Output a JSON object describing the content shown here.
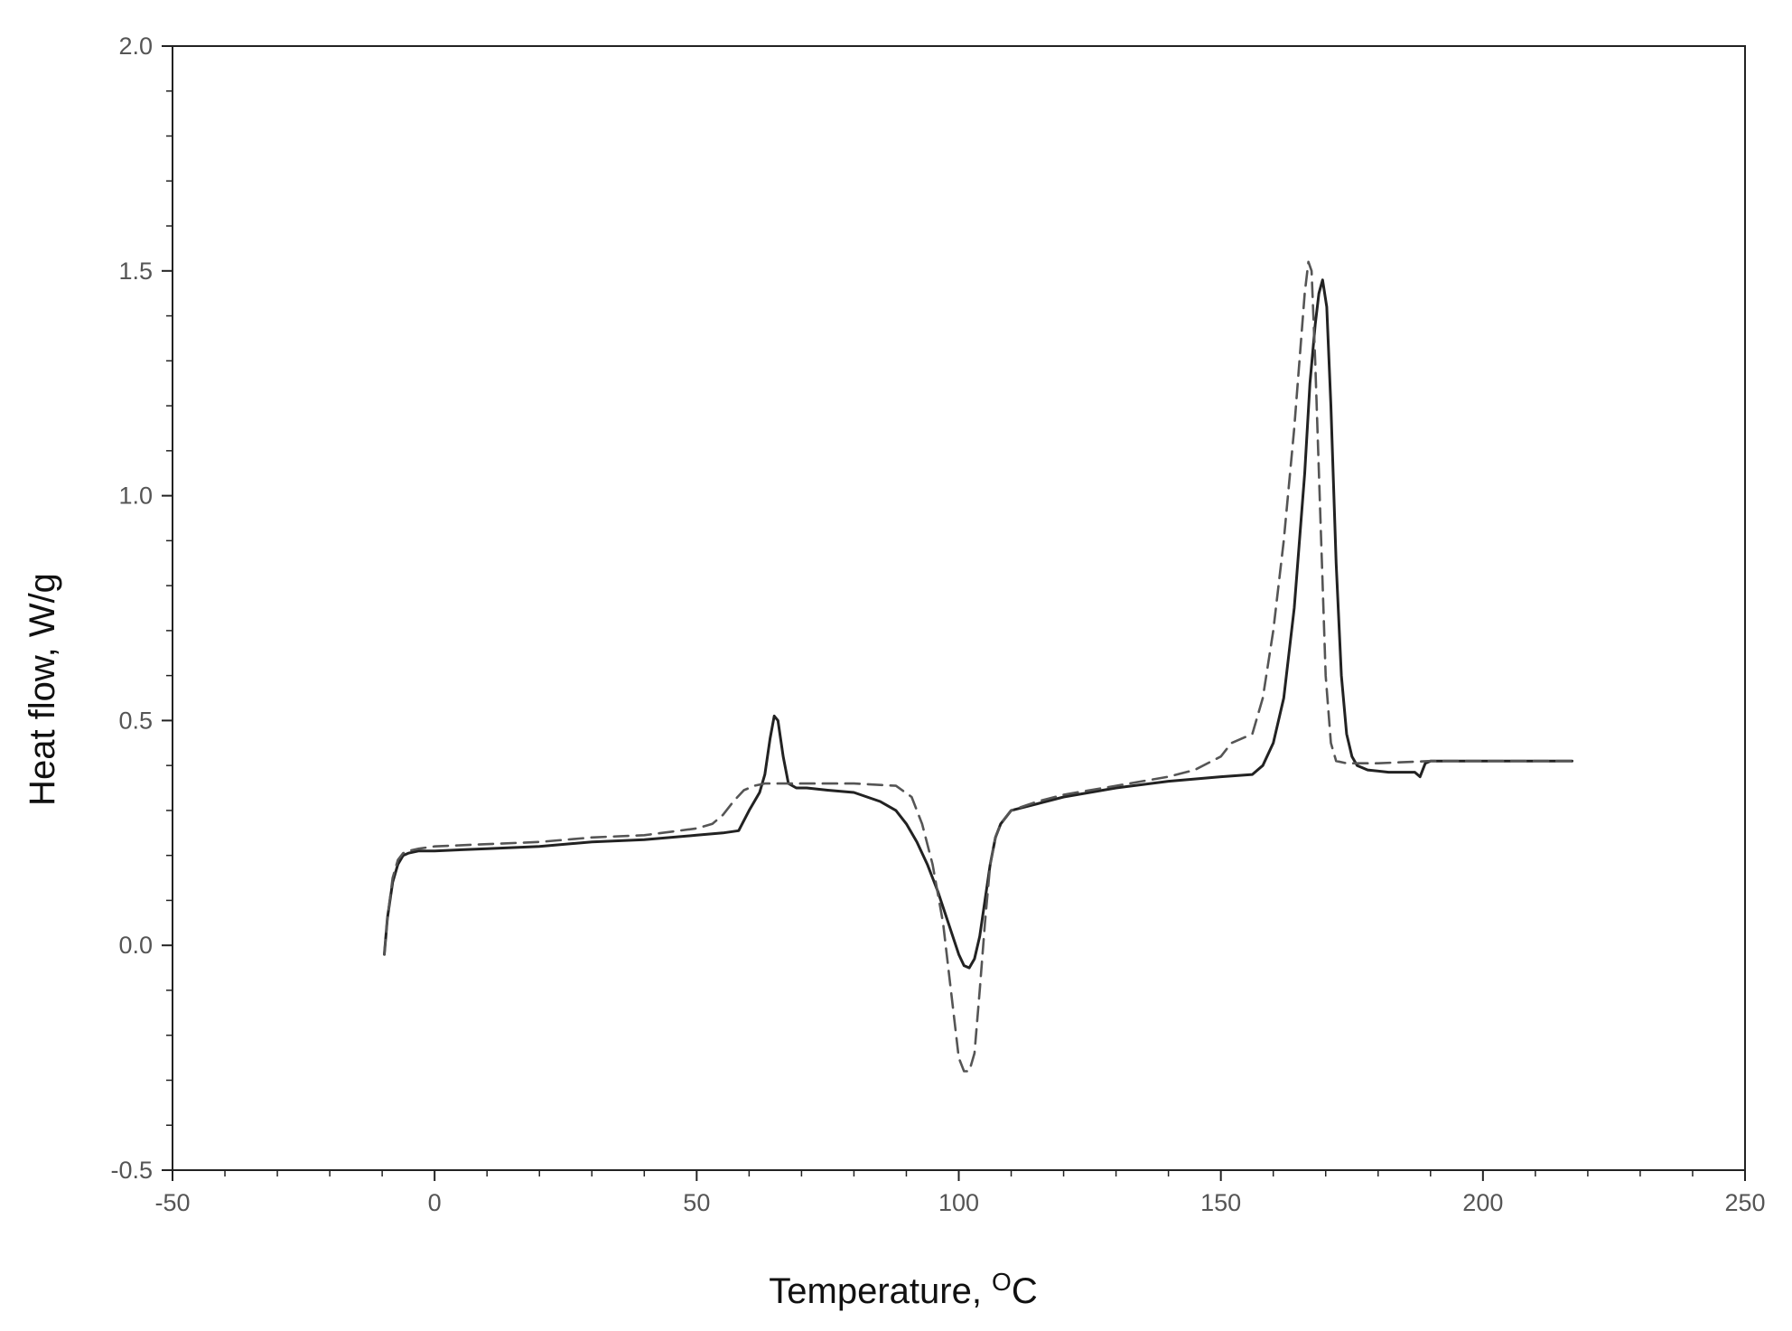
{
  "chart_data": {
    "type": "line",
    "title": "",
    "xlabel": "Temperature, ",
    "xlabel_unit_sup": "O",
    "xlabel_unit": "C",
    "ylabel": "Heat flow, W/g",
    "xlim": [
      -50,
      250
    ],
    "ylim": [
      -0.5,
      2.0
    ],
    "xticks": [
      -50,
      0,
      50,
      100,
      150,
      200,
      250
    ],
    "xtick_labels": [
      "-50",
      "0",
      "50",
      "100",
      "150",
      "200",
      "250"
    ],
    "yticks": [
      -0.5,
      0.0,
      0.5,
      1.0,
      1.5,
      2.0
    ],
    "ytick_labels": [
      "-0.5",
      "0.0",
      "0.5",
      "1.0",
      "1.5",
      "2.0"
    ],
    "grid": false,
    "legend": "none",
    "series": [
      {
        "style": "solid",
        "color": "#222222",
        "x": [
          -9.6,
          -9,
          -8,
          -7,
          -6,
          -5,
          -3,
          0,
          10,
          20,
          30,
          40,
          50,
          55,
          58,
          60,
          62,
          63,
          64,
          64.8,
          65.5,
          66.5,
          67.5,
          69,
          71,
          75,
          80,
          85,
          88,
          90,
          92,
          94,
          96,
          98,
          100,
          101,
          102,
          103,
          104,
          105,
          106,
          107,
          108,
          110,
          115,
          120,
          130,
          140,
          150,
          156,
          158,
          160,
          162,
          164,
          166,
          167,
          168,
          168.7,
          169.4,
          170.2,
          171,
          172,
          173,
          174,
          175,
          176,
          178,
          182,
          186,
          187,
          188,
          189,
          190,
          195,
          200,
          210,
          217
        ],
        "y": [
          -0.02,
          0.06,
          0.14,
          0.18,
          0.2,
          0.205,
          0.21,
          0.21,
          0.215,
          0.22,
          0.23,
          0.235,
          0.245,
          0.25,
          0.255,
          0.3,
          0.34,
          0.38,
          0.46,
          0.51,
          0.5,
          0.42,
          0.36,
          0.35,
          0.35,
          0.345,
          0.34,
          0.32,
          0.3,
          0.27,
          0.23,
          0.18,
          0.12,
          0.05,
          -0.02,
          -0.045,
          -0.05,
          -0.03,
          0.02,
          0.1,
          0.18,
          0.24,
          0.27,
          0.3,
          0.315,
          0.33,
          0.35,
          0.365,
          0.375,
          0.38,
          0.4,
          0.45,
          0.55,
          0.75,
          1.05,
          1.25,
          1.38,
          1.45,
          1.48,
          1.42,
          1.2,
          0.85,
          0.6,
          0.47,
          0.42,
          0.4,
          0.39,
          0.385,
          0.385,
          0.385,
          0.375,
          0.405,
          0.41,
          0.41,
          0.41,
          0.41,
          0.41
        ]
      },
      {
        "style": "dashed",
        "color": "#555555",
        "x": [
          -9.6,
          -9,
          -8,
          -7,
          -6,
          -5,
          -3,
          0,
          10,
          20,
          30,
          40,
          50,
          53,
          55,
          57,
          59,
          61,
          63,
          65,
          70,
          80,
          88,
          91,
          93,
          95,
          97,
          98,
          99,
          100,
          101,
          102,
          103,
          104,
          105,
          106,
          107,
          108,
          110,
          115,
          120,
          130,
          140,
          145,
          150,
          152,
          154,
          156,
          158,
          160,
          162,
          164,
          165,
          166,
          166.7,
          167.3,
          168,
          169,
          170,
          171,
          172,
          174,
          176,
          180,
          190,
          200,
          210,
          217
        ],
        "y": [
          -0.02,
          0.06,
          0.15,
          0.19,
          0.205,
          0.21,
          0.215,
          0.22,
          0.225,
          0.23,
          0.24,
          0.245,
          0.26,
          0.27,
          0.29,
          0.32,
          0.345,
          0.355,
          0.36,
          0.36,
          0.36,
          0.36,
          0.355,
          0.33,
          0.27,
          0.18,
          0.05,
          -0.05,
          -0.15,
          -0.25,
          -0.28,
          -0.28,
          -0.24,
          -0.1,
          0.05,
          0.18,
          0.24,
          0.27,
          0.3,
          0.32,
          0.335,
          0.355,
          0.375,
          0.39,
          0.42,
          0.45,
          0.46,
          0.47,
          0.55,
          0.7,
          0.9,
          1.15,
          1.3,
          1.45,
          1.52,
          1.5,
          1.3,
          0.95,
          0.6,
          0.45,
          0.41,
          0.405,
          0.405,
          0.405,
          0.41,
          0.41,
          0.41,
          0.41
        ]
      }
    ]
  }
}
